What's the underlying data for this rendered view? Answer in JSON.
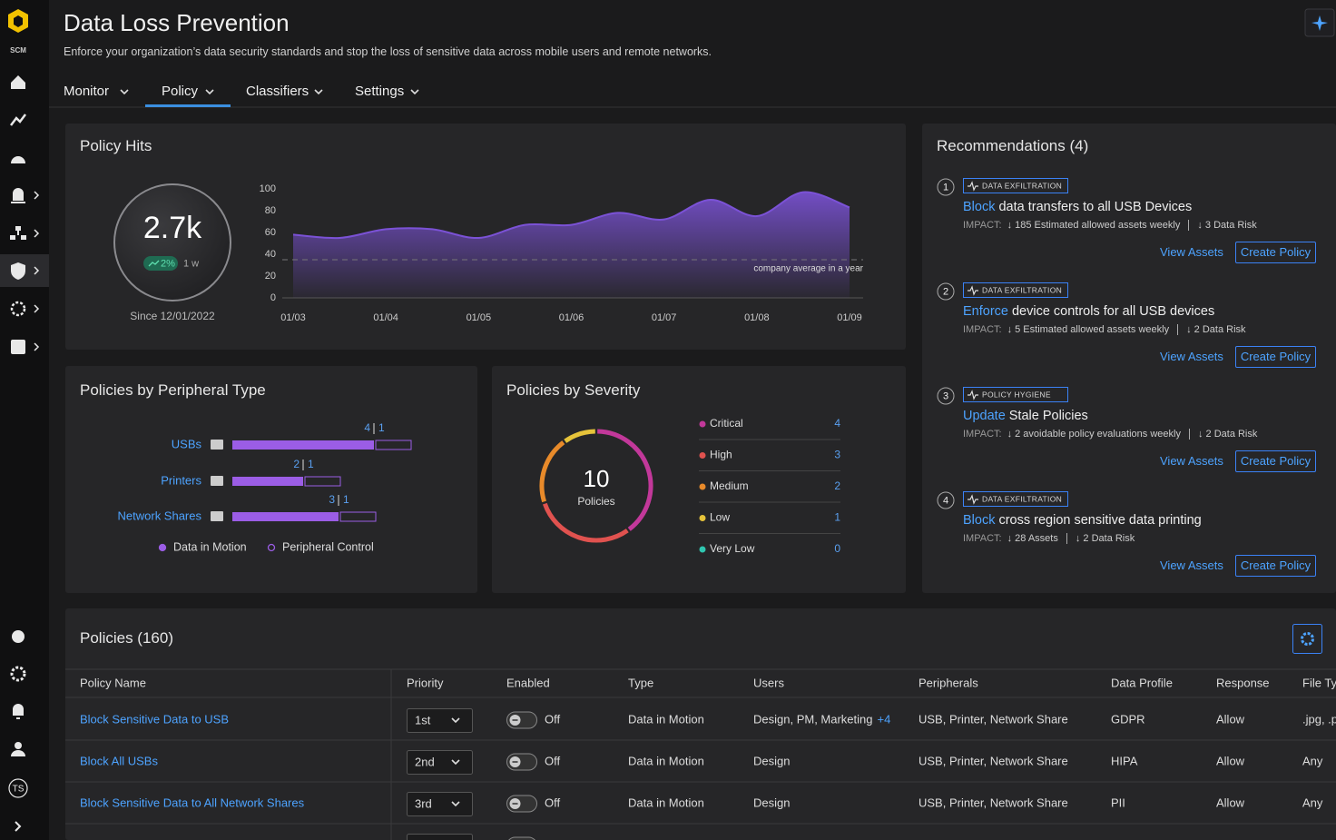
{
  "sidebar": {
    "logo": "SCM",
    "avatar": "TS"
  },
  "header": {
    "title": "Data Loss Prevention",
    "subtitle": "Enforce your organization’s data security standards and stop the loss of sensitive data across mobile users and remote networks.",
    "tabs": [
      "Monitor",
      "Policy",
      "Classifiers",
      "Settings"
    ],
    "active_tab": 1
  },
  "chart_data": [
    {
      "type": "area",
      "title": "Policy Hits",
      "total": "2.7k",
      "change": "2%",
      "period": "1 w",
      "since": "Since 12/01/2022",
      "x": [
        "01/03",
        null,
        "01/04",
        null,
        "01/05",
        null,
        "01/06",
        null,
        "01/07",
        null,
        "01/08",
        null,
        "01/09"
      ],
      "values": [
        58,
        55,
        63,
        63,
        55,
        67,
        67,
        78,
        72,
        90,
        75,
        97,
        83
      ],
      "color": "#7b52d6",
      "ylim": [
        0,
        100
      ],
      "yticks": [
        0,
        20,
        40,
        60,
        80,
        100
      ],
      "grid": false,
      "reference_line": {
        "value": 35,
        "label": "company average in a year"
      }
    },
    {
      "type": "bar",
      "orientation": "horizontal",
      "stacked": true,
      "title": "Policies by Peripheral Type",
      "categories": [
        "USBs",
        "Printers",
        "Network Shares"
      ],
      "series": [
        {
          "name": "Data in Motion",
          "color": "#9b5de5",
          "style": "filled",
          "values": [
            4,
            2,
            3
          ]
        },
        {
          "name": "Peripheral Control",
          "color": "#9b5de5",
          "style": "outline",
          "values": [
            1,
            1,
            1
          ]
        }
      ]
    },
    {
      "type": "donut",
      "title": "Policies by Severity",
      "total": 10,
      "total_label": "Policies",
      "categories": [
        "Critical",
        "High",
        "Medium",
        "Low",
        "Very Low"
      ],
      "values": [
        4,
        3,
        2,
        1,
        0
      ],
      "colors": [
        "#c2389a",
        "#e0524f",
        "#e88a2a",
        "#e6c33a",
        "#2fc6b0"
      ]
    }
  ],
  "recommendations": {
    "title": "Recommendations (4)",
    "items": [
      {
        "number": "1",
        "tag": "DATA EXFILTRATION",
        "action": "Block",
        "text": "data transfers to all USB Devices",
        "impact_label": "IMPACT:",
        "impacts": [
          "↓ 185 Estimated allowed assets weekly",
          "↓ 3 Data Risk"
        ],
        "buttons": [
          "View Assets",
          "Create Policy"
        ]
      },
      {
        "number": "2",
        "tag": "DATA EXFILTRATION",
        "action": "Enforce",
        "text": "device controls for all USB devices",
        "impact_label": "IMPACT:",
        "impacts": [
          "↓ 5 Estimated allowed assets weekly",
          "↓ 2 Data Risk"
        ],
        "buttons": [
          "View Assets",
          "Create Policy"
        ]
      },
      {
        "number": "3",
        "tag": "POLICY HYGIENE",
        "action": "Update",
        "text": "Stale Policies",
        "impact_label": "IMPACT:",
        "impacts": [
          "↓ 2 avoidable policy evaluations weekly",
          "↓ 2 Data Risk"
        ],
        "buttons": [
          "View Assets",
          "Create Policy"
        ]
      },
      {
        "number": "4",
        "tag": "DATA EXFILTRATION",
        "action": "Block",
        "text": "cross region sensitive data printing",
        "impact_label": "IMPACT:",
        "impacts": [
          "↓ 28 Assets",
          "↓ 2 Data Risk"
        ],
        "buttons": [
          "View Assets",
          "Create Policy"
        ]
      }
    ]
  },
  "policies": {
    "title": "Policies (160)",
    "columns": [
      "Policy Name",
      "Priority",
      "Enabled",
      "Type",
      "Users",
      "Peripherals",
      "Data Profile",
      "Response",
      "File Ty"
    ],
    "rows": [
      {
        "name": "Block Sensitive Data to USB",
        "priority": "1st",
        "enabled": "Off",
        "type": "Data in Motion",
        "users": "Design, PM, Marketing",
        "users_more": "+4",
        "peripherals": "USB, Printer, Network Share",
        "data_profile": "GDPR",
        "response": "Allow",
        "file_types": ".jpg, .p"
      },
      {
        "name": "Block All USBs",
        "priority": "2nd",
        "enabled": "Off",
        "type": "Data in Motion",
        "users": "Design",
        "peripherals": "USB, Printer, Network Share",
        "data_profile": "HIPA",
        "response": "Allow",
        "file_types": "Any"
      },
      {
        "name": "Block Sensitive Data to All Network Shares",
        "priority": "3rd",
        "enabled": "Off",
        "type": "Data in Motion",
        "users": "Design",
        "peripherals": "USB, Printer, Network Share",
        "data_profile": "PII",
        "response": "Allow",
        "file_types": "Any"
      }
    ]
  }
}
